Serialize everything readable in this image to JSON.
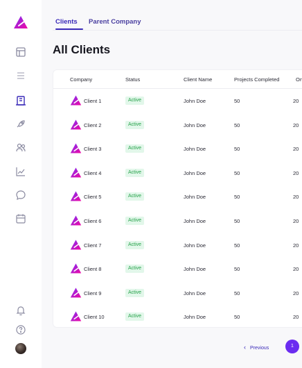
{
  "sidebar": {
    "items": [
      {
        "name": "dashboard"
      },
      {
        "name": "list"
      },
      {
        "name": "clients",
        "active": true
      },
      {
        "name": "projects"
      },
      {
        "name": "team"
      },
      {
        "name": "analytics"
      },
      {
        "name": "messages"
      },
      {
        "name": "calendar"
      }
    ],
    "bottom": [
      {
        "name": "notifications"
      },
      {
        "name": "help"
      },
      {
        "name": "profile"
      }
    ]
  },
  "tabs": [
    {
      "label": "Clients",
      "active": true
    },
    {
      "label": "Parent Company",
      "active": false
    }
  ],
  "page_title": "All Clients",
  "table": {
    "columns": [
      "Company",
      "Status",
      "Client Name",
      "Projects Completed",
      "On"
    ],
    "rows": [
      {
        "company": "Client 1",
        "status": "Active",
        "client_name": "John Doe",
        "projects_completed": "50",
        "ongoing": "20"
      },
      {
        "company": "Client 2",
        "status": "Active",
        "client_name": "John Doe",
        "projects_completed": "50",
        "ongoing": "20"
      },
      {
        "company": "Client 3",
        "status": "Active",
        "client_name": "John Doe",
        "projects_completed": "50",
        "ongoing": "20"
      },
      {
        "company": "Client 4",
        "status": "Active",
        "client_name": "John Doe",
        "projects_completed": "50",
        "ongoing": "20"
      },
      {
        "company": "Client 5",
        "status": "Active",
        "client_name": "John Doe",
        "projects_completed": "50",
        "ongoing": "20"
      },
      {
        "company": "Client 6",
        "status": "Active",
        "client_name": "John Doe",
        "projects_completed": "50",
        "ongoing": "20"
      },
      {
        "company": "Client 7",
        "status": "Active",
        "client_name": "John Doe",
        "projects_completed": "50",
        "ongoing": "20"
      },
      {
        "company": "Client 8",
        "status": "Active",
        "client_name": "John Doe",
        "projects_completed": "50",
        "ongoing": "20"
      },
      {
        "company": "Client 9",
        "status": "Active",
        "client_name": "John Doe",
        "projects_completed": "50",
        "ongoing": "20"
      },
      {
        "company": "Client 10",
        "status": "Active",
        "client_name": "John Doe",
        "projects_completed": "50",
        "ongoing": "20"
      }
    ]
  },
  "pagination": {
    "previous_label": "Previous",
    "current_page": "1"
  },
  "colors": {
    "accent": "#3a2ab8",
    "brand_gradient_start": "#7b2ff7",
    "brand_gradient_end": "#f107a3",
    "active_badge_bg": "#e2f7ea",
    "active_badge_text": "#24a148",
    "page_button": "#6b2cf0"
  }
}
